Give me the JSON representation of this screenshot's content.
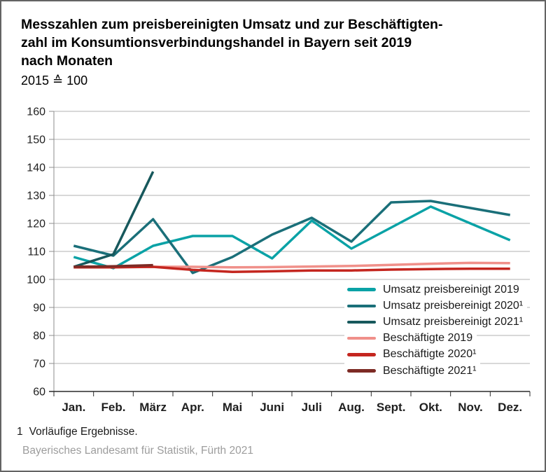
{
  "footer": {
    "footnote_marker": "1",
    "footnote_text": "Vorläufige Ergebnisse.",
    "source": "Bayerisches Landesamt für Statistik, Fürth 2021"
  },
  "chart_data": {
    "type": "line",
    "title": "Messzahlen zum preisbereinigten Umsatz und zur Beschäftigten-\nzahl im Konsumtionsverbindungshandel in Bayern seit 2019\nnach Monaten",
    "subtitle": "2015 ≙ 100",
    "xlabel": "",
    "ylabel": "",
    "categories": [
      "Jan.",
      "Feb.",
      "März",
      "Apr.",
      "Mai",
      "Juni",
      "Juli",
      "Aug.",
      "Sept.",
      "Okt.",
      "Nov.",
      "Dez."
    ],
    "ylim": [
      60,
      160
    ],
    "yticks": [
      60,
      70,
      80,
      90,
      100,
      110,
      120,
      130,
      140,
      150,
      160
    ],
    "grid": true,
    "legend_position": "inside-bottom-right",
    "colors": {
      "grid": "#b2b2b2",
      "axis_minor": "#8c8c8c",
      "axis_major": "#2a2a2a"
    },
    "series": [
      {
        "name": "Umsatz preisbereinigt 2019",
        "color": "#0aa2a6",
        "values": [
          108,
          104,
          112,
          115.5,
          115.5,
          107.5,
          121,
          111,
          118.5,
          126,
          120,
          114
        ]
      },
      {
        "name": "Umsatz preisbereinigt 2020¹",
        "color": "#1a6f79",
        "values": [
          112,
          108.5,
          121.5,
          102.3,
          108,
          116,
          122,
          113.5,
          127.5,
          128,
          125.5,
          123
        ]
      },
      {
        "name": "Umsatz preisbereinigt 2021¹",
        "color": "#17585c",
        "values": [
          104.5,
          109,
          138.5,
          null,
          null,
          null,
          null,
          null,
          null,
          null,
          null,
          null
        ]
      },
      {
        "name": "Beschäftigte 2019",
        "color": "#f0908a",
        "values": [
          104.4,
          104.4,
          104.5,
          104.5,
          104.3,
          104.4,
          104.6,
          104.8,
          105.2,
          105.6,
          105.9,
          105.8
        ]
      },
      {
        "name": "Beschäftigte 2020¹",
        "color": "#c4261f",
        "values": [
          104.3,
          104.3,
          104.5,
          103.4,
          102.7,
          102.9,
          103.2,
          103.2,
          103.5,
          103.7,
          103.8,
          103.8
        ]
      },
      {
        "name": "Beschäftigte 2021¹",
        "color": "#7d2b25",
        "values": [
          104.5,
          104.7,
          105.1,
          null,
          null,
          null,
          null,
          null,
          null,
          null,
          null,
          null
        ]
      }
    ]
  }
}
